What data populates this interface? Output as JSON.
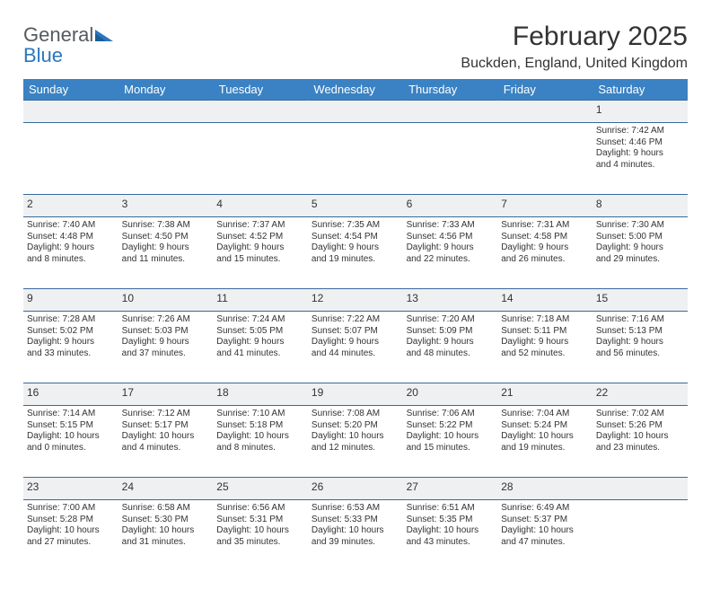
{
  "logo": {
    "word1": "General",
    "word2": "Blue"
  },
  "title": "February 2025",
  "location": "Buckden, England, United Kingdom",
  "weekdays": [
    "Sunday",
    "Monday",
    "Tuesday",
    "Wednesday",
    "Thursday",
    "Friday",
    "Saturday"
  ],
  "colors": {
    "header_bg": "#3a82c4",
    "header_fg": "#ffffff",
    "daynum_bg": "#eef0f2",
    "rule": "#3a6a9a",
    "text": "#333333",
    "logo_gray": "#555a5f",
    "logo_blue": "#2a77bd"
  },
  "weeks": [
    [
      null,
      null,
      null,
      null,
      null,
      null,
      {
        "n": "1",
        "sunrise": "Sunrise: 7:42 AM",
        "sunset": "Sunset: 4:46 PM",
        "day1": "Daylight: 9 hours",
        "day2": "and 4 minutes."
      }
    ],
    [
      {
        "n": "2",
        "sunrise": "Sunrise: 7:40 AM",
        "sunset": "Sunset: 4:48 PM",
        "day1": "Daylight: 9 hours",
        "day2": "and 8 minutes."
      },
      {
        "n": "3",
        "sunrise": "Sunrise: 7:38 AM",
        "sunset": "Sunset: 4:50 PM",
        "day1": "Daylight: 9 hours",
        "day2": "and 11 minutes."
      },
      {
        "n": "4",
        "sunrise": "Sunrise: 7:37 AM",
        "sunset": "Sunset: 4:52 PM",
        "day1": "Daylight: 9 hours",
        "day2": "and 15 minutes."
      },
      {
        "n": "5",
        "sunrise": "Sunrise: 7:35 AM",
        "sunset": "Sunset: 4:54 PM",
        "day1": "Daylight: 9 hours",
        "day2": "and 19 minutes."
      },
      {
        "n": "6",
        "sunrise": "Sunrise: 7:33 AM",
        "sunset": "Sunset: 4:56 PM",
        "day1": "Daylight: 9 hours",
        "day2": "and 22 minutes."
      },
      {
        "n": "7",
        "sunrise": "Sunrise: 7:31 AM",
        "sunset": "Sunset: 4:58 PM",
        "day1": "Daylight: 9 hours",
        "day2": "and 26 minutes."
      },
      {
        "n": "8",
        "sunrise": "Sunrise: 7:30 AM",
        "sunset": "Sunset: 5:00 PM",
        "day1": "Daylight: 9 hours",
        "day2": "and 29 minutes."
      }
    ],
    [
      {
        "n": "9",
        "sunrise": "Sunrise: 7:28 AM",
        "sunset": "Sunset: 5:02 PM",
        "day1": "Daylight: 9 hours",
        "day2": "and 33 minutes."
      },
      {
        "n": "10",
        "sunrise": "Sunrise: 7:26 AM",
        "sunset": "Sunset: 5:03 PM",
        "day1": "Daylight: 9 hours",
        "day2": "and 37 minutes."
      },
      {
        "n": "11",
        "sunrise": "Sunrise: 7:24 AM",
        "sunset": "Sunset: 5:05 PM",
        "day1": "Daylight: 9 hours",
        "day2": "and 41 minutes."
      },
      {
        "n": "12",
        "sunrise": "Sunrise: 7:22 AM",
        "sunset": "Sunset: 5:07 PM",
        "day1": "Daylight: 9 hours",
        "day2": "and 44 minutes."
      },
      {
        "n": "13",
        "sunrise": "Sunrise: 7:20 AM",
        "sunset": "Sunset: 5:09 PM",
        "day1": "Daylight: 9 hours",
        "day2": "and 48 minutes."
      },
      {
        "n": "14",
        "sunrise": "Sunrise: 7:18 AM",
        "sunset": "Sunset: 5:11 PM",
        "day1": "Daylight: 9 hours",
        "day2": "and 52 minutes."
      },
      {
        "n": "15",
        "sunrise": "Sunrise: 7:16 AM",
        "sunset": "Sunset: 5:13 PM",
        "day1": "Daylight: 9 hours",
        "day2": "and 56 minutes."
      }
    ],
    [
      {
        "n": "16",
        "sunrise": "Sunrise: 7:14 AM",
        "sunset": "Sunset: 5:15 PM",
        "day1": "Daylight: 10 hours",
        "day2": "and 0 minutes."
      },
      {
        "n": "17",
        "sunrise": "Sunrise: 7:12 AM",
        "sunset": "Sunset: 5:17 PM",
        "day1": "Daylight: 10 hours",
        "day2": "and 4 minutes."
      },
      {
        "n": "18",
        "sunrise": "Sunrise: 7:10 AM",
        "sunset": "Sunset: 5:18 PM",
        "day1": "Daylight: 10 hours",
        "day2": "and 8 minutes."
      },
      {
        "n": "19",
        "sunrise": "Sunrise: 7:08 AM",
        "sunset": "Sunset: 5:20 PM",
        "day1": "Daylight: 10 hours",
        "day2": "and 12 minutes."
      },
      {
        "n": "20",
        "sunrise": "Sunrise: 7:06 AM",
        "sunset": "Sunset: 5:22 PM",
        "day1": "Daylight: 10 hours",
        "day2": "and 15 minutes."
      },
      {
        "n": "21",
        "sunrise": "Sunrise: 7:04 AM",
        "sunset": "Sunset: 5:24 PM",
        "day1": "Daylight: 10 hours",
        "day2": "and 19 minutes."
      },
      {
        "n": "22",
        "sunrise": "Sunrise: 7:02 AM",
        "sunset": "Sunset: 5:26 PM",
        "day1": "Daylight: 10 hours",
        "day2": "and 23 minutes."
      }
    ],
    [
      {
        "n": "23",
        "sunrise": "Sunrise: 7:00 AM",
        "sunset": "Sunset: 5:28 PM",
        "day1": "Daylight: 10 hours",
        "day2": "and 27 minutes."
      },
      {
        "n": "24",
        "sunrise": "Sunrise: 6:58 AM",
        "sunset": "Sunset: 5:30 PM",
        "day1": "Daylight: 10 hours",
        "day2": "and 31 minutes."
      },
      {
        "n": "25",
        "sunrise": "Sunrise: 6:56 AM",
        "sunset": "Sunset: 5:31 PM",
        "day1": "Daylight: 10 hours",
        "day2": "and 35 minutes."
      },
      {
        "n": "26",
        "sunrise": "Sunrise: 6:53 AM",
        "sunset": "Sunset: 5:33 PM",
        "day1": "Daylight: 10 hours",
        "day2": "and 39 minutes."
      },
      {
        "n": "27",
        "sunrise": "Sunrise: 6:51 AM",
        "sunset": "Sunset: 5:35 PM",
        "day1": "Daylight: 10 hours",
        "day2": "and 43 minutes."
      },
      {
        "n": "28",
        "sunrise": "Sunrise: 6:49 AM",
        "sunset": "Sunset: 5:37 PM",
        "day1": "Daylight: 10 hours",
        "day2": "and 47 minutes."
      },
      null
    ]
  ]
}
